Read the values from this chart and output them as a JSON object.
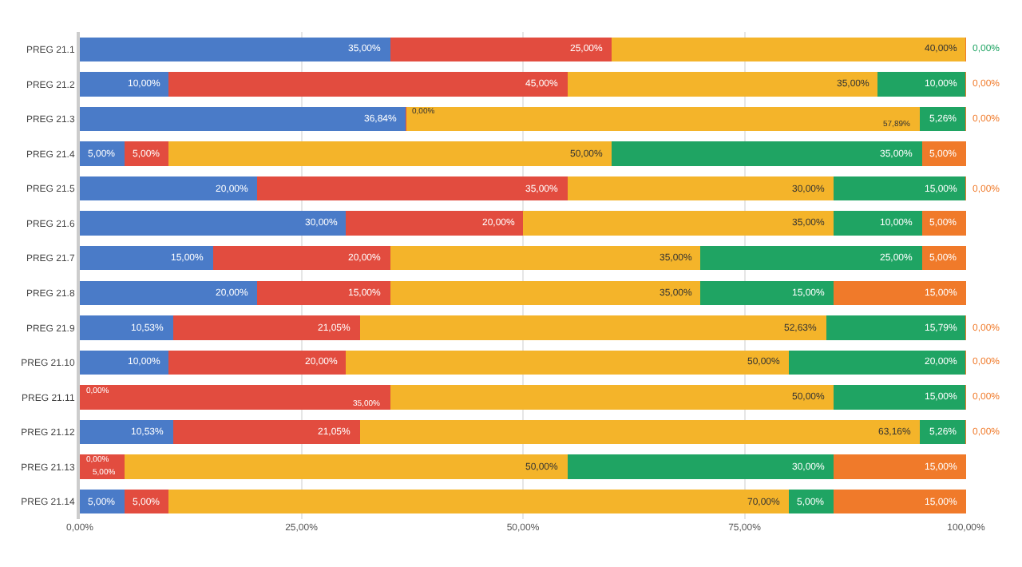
{
  "chart_data": {
    "type": "bar",
    "orientation": "horizontal",
    "stacked": true,
    "data_labels": true,
    "grid": "x",
    "categories": [
      "PREG 21.1",
      "PREG 21.2",
      "PREG 21.3",
      "PREG 21.4",
      "PREG 21.5",
      "PREG 21.6",
      "PREG 21.7",
      "PREG 21.8",
      "PREG 21.9",
      "PREG 21.10",
      "PREG 21.11",
      "PREG 21.12",
      "PREG 21.13",
      "PREG 21.14"
    ],
    "xlim": [
      0,
      100
    ],
    "xticks": [
      {
        "value": 0,
        "label": "0,00%"
      },
      {
        "value": 25,
        "label": "25,00%"
      },
      {
        "value": 50,
        "label": "50,00%"
      },
      {
        "value": 75,
        "label": "75,00%"
      },
      {
        "value": 100,
        "label": "100,00%"
      }
    ],
    "series": [
      {
        "color": "#4a7bc8",
        "values": [
          35,
          10,
          36.84,
          5,
          20,
          30,
          15,
          20,
          10.53,
          10,
          0,
          10.53,
          0,
          5
        ],
        "value_labels": [
          "35,00%",
          "10,00%",
          "36,84%",
          "5,00%",
          "20,00%",
          "30,00%",
          "15,00%",
          "20,00%",
          "10,53%",
          "10,00%",
          "0,00%",
          "10,53%",
          "0,00%",
          "5,00%"
        ]
      },
      {
        "color": "#e24c3f",
        "values": [
          25,
          45,
          0,
          5,
          35,
          20,
          20,
          15,
          21.05,
          20,
          35,
          21.05,
          5,
          5
        ],
        "value_labels": [
          "25,00%",
          "45,00%",
          "0,00%",
          "5,00%",
          "35,00%",
          "20,00%",
          "20,00%",
          "15,00%",
          "21,05%",
          "20,00%",
          "35,00%",
          "21,05%",
          "5,00%",
          "5,00%"
        ]
      },
      {
        "color": "#f4b42a",
        "values": [
          40,
          35,
          57.89,
          50,
          30,
          35,
          35,
          35,
          52.63,
          50,
          50,
          63.16,
          50,
          70
        ],
        "value_labels": [
          "40,00%",
          "35,00%",
          "57,89%",
          "50,00%",
          "30,00%",
          "35,00%",
          "35,00%",
          "35,00%",
          "52,63%",
          "50,00%",
          "50,00%",
          "63,16%",
          "50,00%",
          "70,00%"
        ]
      },
      {
        "color": "#1fa463",
        "values": [
          0,
          10,
          5.26,
          35,
          15,
          10,
          25,
          15,
          15.79,
          20,
          15,
          5.26,
          30,
          5
        ],
        "value_labels": [
          "0,00%",
          "10,00%",
          "5,26%",
          "35,00%",
          "15,00%",
          "10,00%",
          "25,00%",
          "15,00%",
          "15,79%",
          "20,00%",
          "15,00%",
          "5,26%",
          "30,00%",
          "5,00%"
        ]
      },
      {
        "color": "#f07a2a",
        "values": [
          0,
          0,
          0,
          5,
          0,
          5,
          5,
          15,
          0,
          0,
          0,
          0,
          15,
          15
        ],
        "value_labels": [
          null,
          "0,00%",
          "0,00%",
          "5,00%",
          "0,00%",
          "5,00%",
          "5,00%",
          "15,00%",
          "0,00%",
          "0,00%",
          "0,00%",
          "0,00%",
          "15,00%",
          "15,00%"
        ]
      }
    ]
  }
}
